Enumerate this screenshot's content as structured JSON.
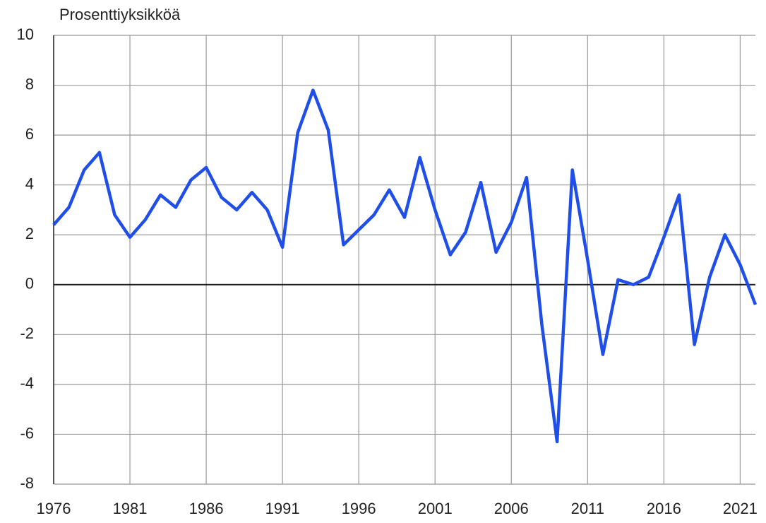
{
  "chart_data": {
    "type": "line",
    "y_label": "Prosenttiyksikköä",
    "x": [
      1976,
      1977,
      1978,
      1979,
      1980,
      1981,
      1982,
      1983,
      1984,
      1985,
      1986,
      1987,
      1988,
      1989,
      1990,
      1991,
      1992,
      1993,
      1994,
      1995,
      1996,
      1997,
      1998,
      1999,
      2000,
      2001,
      2002,
      2003,
      2004,
      2005,
      2006,
      2007,
      2008,
      2009,
      2010,
      2011,
      2012,
      2013,
      2014,
      2015,
      2016,
      2017,
      2018,
      2019,
      2020,
      2021,
      2022
    ],
    "series": [
      {
        "color": "#1f4fe8",
        "values": [
          2.4,
          3.1,
          4.6,
          5.3,
          2.8,
          1.9,
          2.6,
          3.6,
          3.1,
          4.2,
          4.7,
          3.5,
          3.0,
          3.7,
          3.0,
          1.5,
          6.1,
          7.8,
          6.2,
          1.6,
          2.2,
          2.8,
          3.8,
          2.7,
          5.1,
          3.0,
          1.2,
          2.1,
          4.1,
          1.3,
          2.5,
          4.3,
          -1.6,
          -6.3,
          4.6,
          1.0,
          -2.8,
          0.2,
          0.0,
          0.3,
          1.9,
          3.6,
          -2.4,
          0.3,
          2.0,
          0.8,
          -0.8
        ]
      }
    ],
    "xlim": [
      1976,
      2022
    ],
    "xticks": [
      1976,
      1981,
      1986,
      1991,
      1996,
      2001,
      2006,
      2011,
      2016,
      2021
    ],
    "ylim": [
      -8,
      10
    ],
    "yticks": [
      -8,
      -6,
      -4,
      -2,
      0,
      2,
      4,
      6,
      8,
      10
    ],
    "grid": true,
    "zero_line": true
  }
}
